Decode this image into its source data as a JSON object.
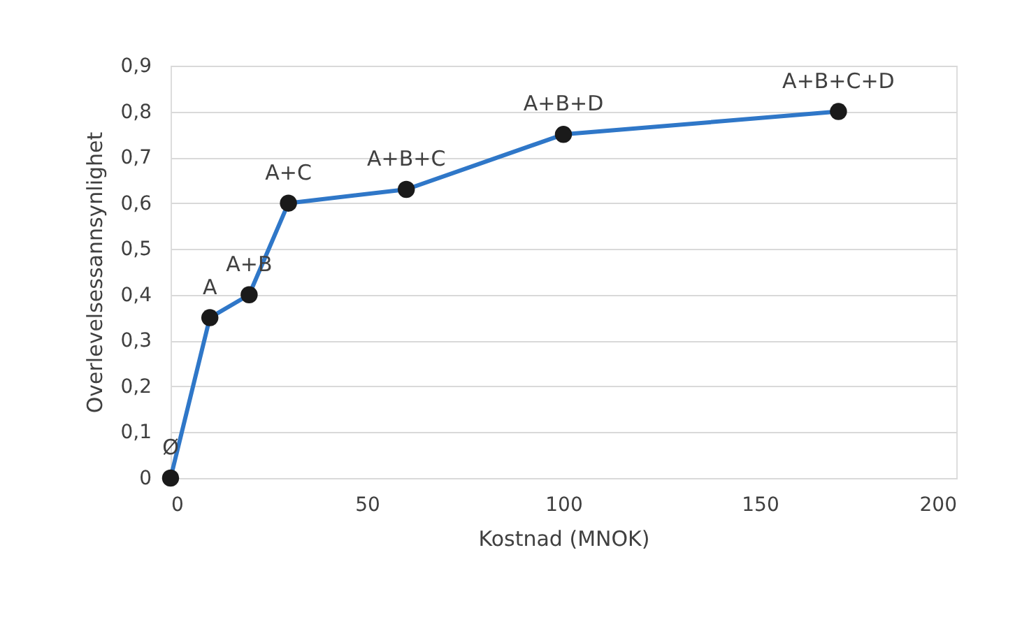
{
  "chart_data": {
    "type": "line",
    "xlabel": "Kostnad (MNOK)",
    "ylabel": "Overlevelsessannsynlighet",
    "x": [
      0,
      10,
      20,
      30,
      60,
      100,
      170
    ],
    "series": [
      {
        "color": "#2f77c8",
        "values": [
          0,
          0.35,
          0.4,
          0.6,
          0.63,
          0.75,
          0.8
        ]
      }
    ],
    "marker": "circle",
    "grid": "y",
    "xlim": [
      0,
      200
    ],
    "xticks": [
      0,
      50,
      100,
      150,
      200
    ],
    "ylim": [
      0,
      0.9
    ],
    "yticks": [
      0,
      {
        "value": 0.1,
        "label": "0,1"
      },
      {
        "value": 0.2,
        "label": "0,2"
      },
      {
        "value": 0.3,
        "label": "0,3"
      },
      {
        "value": 0.4,
        "label": "0,4"
      },
      {
        "value": 0.5,
        "label": "0,5"
      },
      {
        "value": 0.6,
        "label": "0,6"
      },
      {
        "value": 0.7,
        "label": "0,7"
      },
      {
        "value": 0.8,
        "label": "0,8"
      },
      {
        "value": 0.9,
        "label": "0,9"
      }
    ],
    "annotations": [
      {
        "text": "Ø",
        "x": 0,
        "y": 0
      },
      {
        "text": "A",
        "x": 10,
        "y": 0.35
      },
      {
        "text": "A+B",
        "x": 20,
        "y": 0.4
      },
      {
        "text": "A+C",
        "x": 30,
        "y": 0.6
      },
      {
        "text": "A+B+C",
        "x": 60,
        "y": 0.63
      },
      {
        "text": "A+B+D",
        "x": 100,
        "y": 0.75
      },
      {
        "text": "A+B+C+D",
        "x": 170,
        "y": 0.8
      }
    ]
  }
}
